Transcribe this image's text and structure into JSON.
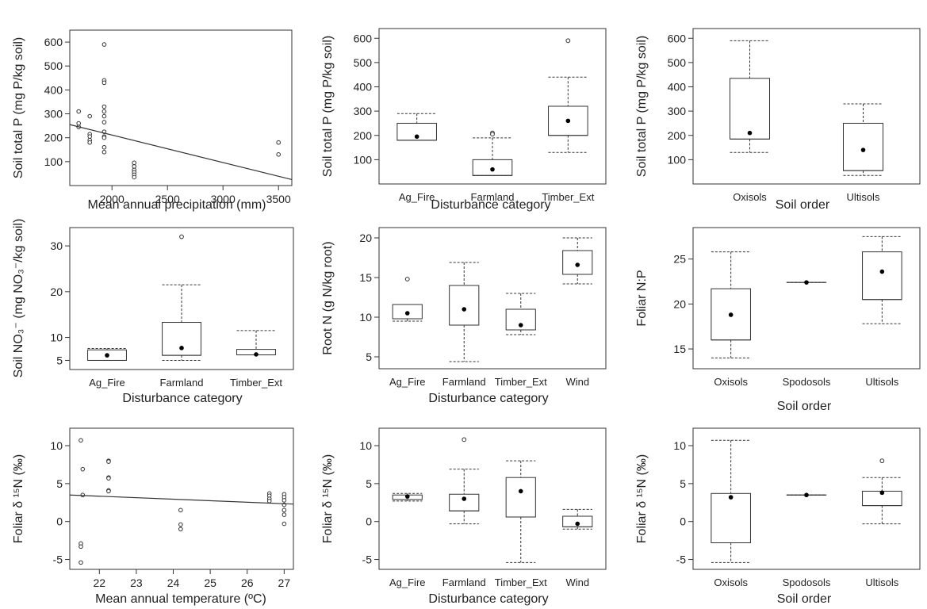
{
  "chart_data": [
    {
      "type": "scatter",
      "xlabel": "Mean annual precipitation (mm)",
      "ylabel": "Soil total P (mg P/kg soil)",
      "xlim": [
        1620,
        3620
      ],
      "ylim": [
        0,
        650
      ],
      "xticks": [
        2000,
        2500,
        3000,
        3500
      ],
      "yticks": [
        100,
        200,
        300,
        400,
        500,
        600
      ],
      "points": [
        [
          1700,
          310
        ],
        [
          1700,
          260
        ],
        [
          1700,
          245
        ],
        [
          1800,
          290
        ],
        [
          1800,
          215
        ],
        [
          1800,
          205
        ],
        [
          1800,
          190
        ],
        [
          1800,
          180
        ],
        [
          1930,
          590
        ],
        [
          1930,
          440
        ],
        [
          1930,
          430
        ],
        [
          1930,
          330
        ],
        [
          1930,
          310
        ],
        [
          1930,
          290
        ],
        [
          1930,
          265
        ],
        [
          1930,
          225
        ],
        [
          1930,
          205
        ],
        [
          1930,
          200
        ],
        [
          1930,
          160
        ],
        [
          1930,
          140
        ],
        [
          2200,
          95
        ],
        [
          2200,
          80
        ],
        [
          2200,
          65
        ],
        [
          2200,
          55
        ],
        [
          2200,
          45
        ],
        [
          2200,
          35
        ],
        [
          3500,
          180
        ],
        [
          3500,
          130
        ]
      ],
      "fit": [
        [
          1620,
          255
        ],
        [
          3620,
          25
        ]
      ]
    },
    {
      "type": "box",
      "xlabel": "Disturbance category",
      "ylabel": "Soil total P (mg P/kg soil)",
      "ylim": [
        0,
        640
      ],
      "yticks": [
        100,
        200,
        300,
        400,
        500,
        600
      ],
      "categories": [
        "Ag_Fire",
        "Farmland",
        "Timber_Ext"
      ],
      "boxes": [
        {
          "q1": 180,
          "median": 180,
          "q3": 250,
          "lo": 180,
          "hi": 290,
          "mean": 195,
          "outliers": []
        },
        {
          "q1": 35,
          "median": 35,
          "q3": 100,
          "lo": 35,
          "hi": 190,
          "mean": 60,
          "outliers": [
            210,
            205
          ]
        },
        {
          "q1": 200,
          "median": 200,
          "q3": 320,
          "lo": 130,
          "hi": 440,
          "mean": 260,
          "outliers": [
            590
          ]
        }
      ]
    },
    {
      "type": "box",
      "xlabel": "Soil order",
      "ylabel": "Soil total P (mg P/kg soil)",
      "ylim": [
        0,
        640
      ],
      "yticks": [
        100,
        200,
        300,
        400,
        500,
        600
      ],
      "categories": [
        "Oxisols",
        "Ultisols"
      ],
      "boxes": [
        {
          "q1": 185,
          "median": 185,
          "q3": 435,
          "lo": 130,
          "hi": 590,
          "mean": 210,
          "outliers": []
        },
        {
          "q1": 55,
          "median": 55,
          "q3": 250,
          "lo": 35,
          "hi": 330,
          "mean": 140,
          "outliers": []
        }
      ]
    },
    {
      "type": "box",
      "xlabel": "Disturbance category",
      "ylabel": "Soil NO₃⁻ (mg NO₃⁻/kg soil)",
      "ylim": [
        3,
        34
      ],
      "yticks": [
        5,
        10,
        20,
        30
      ],
      "categories": [
        "Ag_Fire",
        "Farmland",
        "Timber_Ext"
      ],
      "boxes": [
        {
          "q1": 5,
          "median": 5,
          "q3": 7.3,
          "lo": 5,
          "hi": 7.6,
          "mean": 6.1,
          "outliers": []
        },
        {
          "q1": 6.1,
          "median": 6.1,
          "q3": 13.3,
          "lo": 5,
          "hi": 21.5,
          "mean": 7.7,
          "outliers": [
            32
          ]
        },
        {
          "q1": 6.2,
          "median": 6.2,
          "q3": 7.4,
          "lo": 6.2,
          "hi": 11.5,
          "mean": 6.3,
          "outliers": []
        }
      ]
    },
    {
      "type": "box",
      "xlabel": "Disturbance category",
      "ylabel": "Root N (g N/kg root)",
      "ylim": [
        3.5,
        21.3
      ],
      "yticks": [
        5,
        10,
        15,
        20
      ],
      "categories": [
        "Ag_Fire",
        "Farmland",
        "Timber_Ext",
        "Wind"
      ],
      "boxes": [
        {
          "q1": 9.8,
          "median": 9.8,
          "q3": 11.6,
          "lo": 9.5,
          "hi": 11.6,
          "mean": 10.5,
          "outliers": [
            14.8
          ]
        },
        {
          "q1": 9.0,
          "median": 9.0,
          "q3": 14.0,
          "lo": 4.4,
          "hi": 16.9,
          "mean": 11.0,
          "outliers": []
        },
        {
          "q1": 8.4,
          "median": 8.4,
          "q3": 11.0,
          "lo": 7.8,
          "hi": 13.0,
          "mean": 9.0,
          "outliers": []
        },
        {
          "q1": 15.4,
          "median": 15.4,
          "q3": 18.4,
          "lo": 14.2,
          "hi": 20.0,
          "mean": 16.6,
          "outliers": []
        }
      ]
    },
    {
      "type": "box",
      "xlabel": "Soil order",
      "ylabel": "Foliar N:P",
      "ylim": [
        12.8,
        28.5
      ],
      "yticks": [
        15,
        20,
        25
      ],
      "categories": [
        "Oxisols",
        "Spodosols",
        "Ultisols"
      ],
      "boxes": [
        {
          "q1": 16.0,
          "median": 16.0,
          "q3": 21.7,
          "lo": 14.0,
          "hi": 25.8,
          "mean": 18.8,
          "outliers": []
        },
        {
          "q1": 22.4,
          "median": 22.4,
          "q3": 22.4,
          "lo": 22.4,
          "hi": 22.4,
          "mean": 22.4,
          "outliers": []
        },
        {
          "q1": 20.5,
          "median": 20.5,
          "q3": 25.8,
          "lo": 17.8,
          "hi": 27.5,
          "mean": 23.6,
          "outliers": []
        }
      ]
    },
    {
      "type": "scatter",
      "xlabel": "Mean annual temperature (ºC)",
      "ylabel": "Foliar δ ¹⁵N (‰)",
      "xlim": [
        21.2,
        27.25
      ],
      "ylim": [
        -6.3,
        12.3
      ],
      "xticks": [
        22,
        23,
        24,
        25,
        26,
        27
      ],
      "yticks": [
        -5,
        0,
        5,
        10
      ],
      "points": [
        [
          21.5,
          10.7
        ],
        [
          21.5,
          -2.9
        ],
        [
          21.5,
          -3.3
        ],
        [
          21.5,
          -5.4
        ],
        [
          21.55,
          6.9
        ],
        [
          21.55,
          3.5
        ],
        [
          22.25,
          8.0
        ],
        [
          22.25,
          7.9
        ],
        [
          22.25,
          5.8
        ],
        [
          22.25,
          5.7
        ],
        [
          22.25,
          4.1
        ],
        [
          22.25,
          4.0
        ],
        [
          24.2,
          1.5
        ],
        [
          24.2,
          -0.4
        ],
        [
          24.2,
          -1.0
        ],
        [
          26.6,
          3.7
        ],
        [
          26.6,
          3.4
        ],
        [
          26.6,
          3.0
        ],
        [
          26.6,
          2.7
        ],
        [
          27.0,
          3.6
        ],
        [
          27.0,
          3.2
        ],
        [
          27.0,
          2.8
        ],
        [
          27.0,
          2.2
        ],
        [
          27.0,
          1.5
        ],
        [
          27.0,
          0.9
        ],
        [
          27.0,
          -0.3
        ]
      ],
      "fit": [
        [
          21.2,
          3.5
        ],
        [
          27.25,
          2.3
        ]
      ]
    },
    {
      "type": "box",
      "xlabel": "Disturbance category",
      "ylabel": "Foliar δ ¹⁵N (‰)",
      "ylim": [
        -6.3,
        12.3
      ],
      "yticks": [
        -5,
        0,
        5,
        10
      ],
      "categories": [
        "Ag_Fire",
        "Farmland",
        "Timber_Ext",
        "Wind"
      ],
      "boxes": [
        {
          "q1": 2.9,
          "median": 2.9,
          "q3": 3.5,
          "lo": 2.7,
          "hi": 3.7,
          "mean": 3.3,
          "outliers": []
        },
        {
          "q1": 1.4,
          "median": 1.4,
          "q3": 3.6,
          "lo": -0.3,
          "hi": 6.9,
          "mean": 3.0,
          "outliers": [
            10.8
          ]
        },
        {
          "q1": 0.6,
          "median": 0.6,
          "q3": 5.8,
          "lo": -5.4,
          "hi": 8.0,
          "mean": 4.0,
          "outliers": []
        },
        {
          "q1": -0.7,
          "median": -0.7,
          "q3": 0.7,
          "lo": -1.0,
          "hi": 1.6,
          "mean": -0.3,
          "outliers": []
        }
      ]
    },
    {
      "type": "box",
      "xlabel": "Soil order",
      "ylabel": "Foliar δ ¹⁵N (‰)",
      "ylim": [
        -6.3,
        12.3
      ],
      "yticks": [
        -5,
        0,
        5,
        10
      ],
      "categories": [
        "Oxisols",
        "Spodosols",
        "Ultisols"
      ],
      "boxes": [
        {
          "q1": -2.8,
          "median": -2.8,
          "q3": 3.7,
          "lo": -5.4,
          "hi": 10.7,
          "mean": 3.2,
          "outliers": []
        },
        {
          "q1": 3.5,
          "median": 3.5,
          "q3": 3.5,
          "lo": 3.5,
          "hi": 3.5,
          "mean": 3.5,
          "outliers": []
        },
        {
          "q1": 2.1,
          "median": 2.1,
          "q3": 4.0,
          "lo": -0.3,
          "hi": 5.8,
          "mean": 3.8,
          "outliers": [
            8.0
          ]
        }
      ]
    }
  ]
}
